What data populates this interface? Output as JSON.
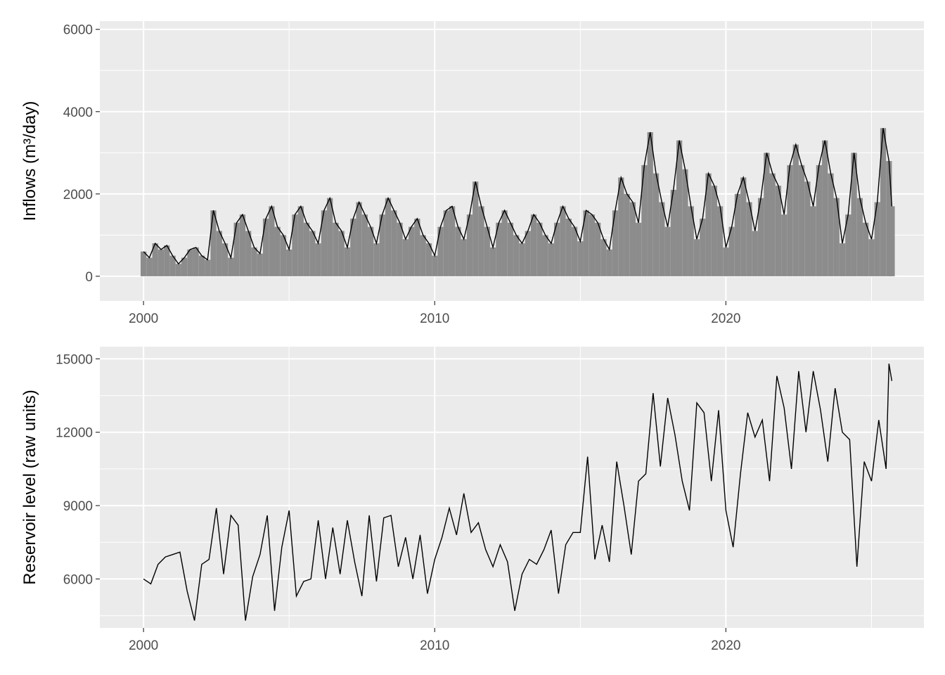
{
  "chart_data": [
    {
      "type": "bar",
      "title": "",
      "xlabel": "",
      "ylabel": "Inflows (m³/day)",
      "xlim": [
        1998.5,
        2026.8
      ],
      "ylim": [
        -600,
        6200
      ],
      "x_ticks": [
        2000,
        2010,
        2020
      ],
      "x_tick_labels": [
        "2000",
        "2010",
        "2020"
      ],
      "y_ticks": [
        0,
        2000,
        4000,
        6000
      ],
      "y_tick_labels": [
        "0",
        "2000",
        "4000",
        "6000"
      ],
      "grid": true,
      "legend": "none",
      "colors": {
        "bars": "#8c8c8c",
        "line": "#000000",
        "panel": "#ebebeb",
        "grid": "#ffffff"
      },
      "series": [
        {
          "x": [
            2000.0,
            2000.2,
            2000.4,
            2000.6,
            2000.8,
            2001.0,
            2001.2,
            2001.4,
            2001.6,
            2001.8,
            2002.0,
            2002.2,
            2002.4,
            2002.6,
            2002.8,
            2003.0,
            2003.2,
            2003.4,
            2003.6,
            2003.8,
            2004.0,
            2004.2,
            2004.4,
            2004.6,
            2004.8,
            2005.0,
            2005.2,
            2005.4,
            2005.6,
            2005.8,
            2006.0,
            2006.2,
            2006.4,
            2006.6,
            2006.8,
            2007.0,
            2007.2,
            2007.4,
            2007.6,
            2007.8,
            2008.0,
            2008.2,
            2008.4,
            2008.6,
            2008.8,
            2009.0,
            2009.2,
            2009.4,
            2009.6,
            2009.8,
            2010.0,
            2010.2,
            2010.4,
            2010.6,
            2010.8,
            2011.0,
            2011.2,
            2011.4,
            2011.6,
            2011.8,
            2012.0,
            2012.2,
            2012.4,
            2012.6,
            2012.8,
            2013.0,
            2013.2,
            2013.4,
            2013.6,
            2013.8,
            2014.0,
            2014.2,
            2014.4,
            2014.6,
            2014.8,
            2015.0,
            2015.2,
            2015.4,
            2015.6,
            2015.8,
            2016.0,
            2016.2,
            2016.4,
            2016.6,
            2016.8,
            2017.0,
            2017.2,
            2017.4,
            2017.6,
            2017.8,
            2018.0,
            2018.2,
            2018.4,
            2018.6,
            2018.8,
            2019.0,
            2019.2,
            2019.4,
            2019.6,
            2019.8,
            2020.0,
            2020.2,
            2020.4,
            2020.6,
            2020.8,
            2021.0,
            2021.2,
            2021.4,
            2021.6,
            2021.8,
            2022.0,
            2022.2,
            2022.4,
            2022.6,
            2022.8,
            2023.0,
            2023.2,
            2023.4,
            2023.6,
            2023.8,
            2024.0,
            2024.2,
            2024.4,
            2024.6,
            2024.8,
            2025.0,
            2025.2,
            2025.4,
            2025.6,
            2025.7
          ],
          "values": [
            600,
            450,
            800,
            650,
            750,
            500,
            300,
            450,
            650,
            700,
            500,
            400,
            1600,
            1100,
            800,
            450,
            1300,
            1500,
            1100,
            700,
            550,
            1400,
            1700,
            1200,
            1000,
            650,
            1500,
            1700,
            1300,
            1100,
            800,
            1600,
            1900,
            1300,
            1100,
            700,
            1400,
            1800,
            1500,
            1200,
            800,
            1500,
            1900,
            1600,
            1300,
            900,
            1200,
            1400,
            1000,
            800,
            500,
            1200,
            1600,
            1700,
            1200,
            900,
            1500,
            2300,
            1700,
            1200,
            700,
            1300,
            1600,
            1300,
            1000,
            800,
            1100,
            1500,
            1300,
            1000,
            800,
            1300,
            1700,
            1400,
            1200,
            850,
            1600,
            1500,
            1300,
            900,
            650,
            1600,
            2400,
            2000,
            1800,
            1300,
            2700,
            3500,
            2500,
            1800,
            1200,
            2100,
            3300,
            2600,
            1700,
            900,
            1400,
            2500,
            2200,
            1700,
            700,
            1200,
            2000,
            2400,
            1800,
            1100,
            1900,
            3000,
            2500,
            2200,
            1500,
            2700,
            3200,
            2700,
            2300,
            1700,
            2700,
            3300,
            2500,
            1900,
            800,
            1500,
            3000,
            1900,
            1300,
            900,
            1800,
            3600,
            2800,
            1700
          ]
        }
      ]
    },
    {
      "type": "line",
      "title": "",
      "xlabel": "",
      "ylabel": "Reservoir level (raw units)",
      "xlim": [
        1998.5,
        2026.8
      ],
      "ylim": [
        4000,
        15500
      ],
      "x_ticks": [
        2000,
        2010,
        2020
      ],
      "x_tick_labels": [
        "2000",
        "2010",
        "2020"
      ],
      "y_ticks": [
        6000,
        9000,
        12000,
        15000
      ],
      "y_tick_labels": [
        "6000",
        "9000",
        "12000",
        "15000"
      ],
      "grid": true,
      "legend": "none",
      "colors": {
        "line": "#000000",
        "panel": "#ebebeb",
        "grid": "#ffffff"
      },
      "series": [
        {
          "x": [
            2000.0,
            2000.25,
            2000.5,
            2000.75,
            2001.0,
            2001.25,
            2001.5,
            2001.75,
            2002.0,
            2002.25,
            2002.5,
            2002.75,
            2003.0,
            2003.25,
            2003.5,
            2003.75,
            2004.0,
            2004.25,
            2004.5,
            2004.75,
            2005.0,
            2005.25,
            2005.5,
            2005.75,
            2006.0,
            2006.25,
            2006.5,
            2006.75,
            2007.0,
            2007.25,
            2007.5,
            2007.75,
            2008.0,
            2008.25,
            2008.5,
            2008.75,
            2009.0,
            2009.25,
            2009.5,
            2009.75,
            2010.0,
            2010.25,
            2010.5,
            2010.75,
            2011.0,
            2011.25,
            2011.5,
            2011.75,
            2012.0,
            2012.25,
            2012.5,
            2012.75,
            2013.0,
            2013.25,
            2013.5,
            2013.75,
            2014.0,
            2014.25,
            2014.5,
            2014.75,
            2015.0,
            2015.25,
            2015.5,
            2015.75,
            2016.0,
            2016.25,
            2016.5,
            2016.75,
            2017.0,
            2017.25,
            2017.5,
            2017.75,
            2018.0,
            2018.25,
            2018.5,
            2018.75,
            2019.0,
            2019.25,
            2019.5,
            2019.75,
            2020.0,
            2020.25,
            2020.5,
            2020.75,
            2021.0,
            2021.25,
            2021.5,
            2021.75,
            2022.0,
            2022.25,
            2022.5,
            2022.75,
            2023.0,
            2023.25,
            2023.5,
            2023.75,
            2024.0,
            2024.25,
            2024.5,
            2024.75,
            2025.0,
            2025.25,
            2025.5,
            2025.6,
            2025.7
          ],
          "values": [
            6000,
            5800,
            6600,
            6900,
            7000,
            7100,
            5500,
            4300,
            6600,
            6800,
            8900,
            6200,
            8600,
            8200,
            4300,
            6100,
            7000,
            8600,
            4700,
            7300,
            8800,
            5300,
            5900,
            6000,
            8400,
            6000,
            8100,
            6200,
            8400,
            6700,
            5300,
            8600,
            5900,
            8500,
            8600,
            6500,
            7700,
            6000,
            7800,
            5400,
            6800,
            7700,
            8900,
            7800,
            9500,
            7900,
            8300,
            7200,
            6500,
            7400,
            6700,
            4700,
            6200,
            6800,
            6600,
            7200,
            8000,
            5400,
            7400,
            7900,
            7900,
            11000,
            6800,
            8200,
            6700,
            10800,
            9000,
            7000,
            10000,
            10300,
            13600,
            10600,
            13400,
            11900,
            10000,
            8800,
            13200,
            12800,
            10000,
            12900,
            8800,
            7300,
            10300,
            12800,
            11800,
            12500,
            10000,
            14300,
            13000,
            10500,
            14500,
            12000,
            14500,
            12900,
            10800,
            13800,
            12000,
            11700,
            6500,
            10800,
            10000,
            12500,
            10500,
            14800,
            14100
          ]
        }
      ]
    }
  ]
}
